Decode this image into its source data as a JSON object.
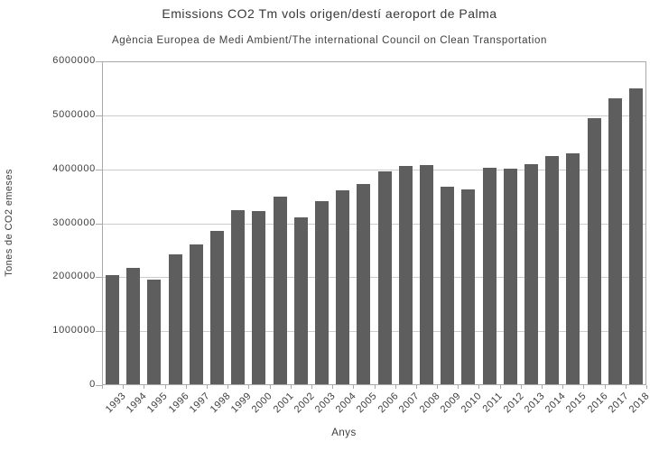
{
  "chart_data": {
    "type": "bar",
    "title": "Emissions CO2 Tm vols origen/destí aeroport de Palma",
    "subtitle": "Agència Europea de Medi Ambient/The international Council on Clean Transportation",
    "xlabel": "Anys",
    "ylabel": "Tones de CO2 emeses",
    "categories": [
      "1993",
      "1994",
      "1995",
      "1996",
      "1997",
      "1998",
      "1999",
      "2000",
      "2001",
      "2002",
      "2003",
      "2004",
      "2005",
      "2006",
      "2007",
      "2008",
      "2009",
      "2010",
      "2011",
      "2012",
      "2013",
      "2014",
      "2015",
      "2016",
      "2017",
      "2018"
    ],
    "values": [
      2040000,
      2180000,
      1960000,
      2430000,
      2600000,
      2850000,
      3240000,
      3230000,
      3490000,
      3110000,
      3410000,
      3610000,
      3730000,
      3960000,
      4060000,
      4080000,
      3680000,
      3630000,
      4030000,
      4010000,
      4100000,
      4250000,
      4300000,
      4950000,
      5320000,
      5500000
    ],
    "ylim": [
      0,
      6000000
    ],
    "ytick_interval": 1000000,
    "ytick_labels": [
      "0",
      "1000000",
      "2000000",
      "3000000",
      "4000000",
      "5000000",
      "6000000"
    ],
    "grid": true,
    "legend": "none"
  },
  "colors": {
    "bar": "#5e5e5e",
    "gridline": "#cccccc",
    "frame": "#a9a9a9",
    "text": "#3d3d3d",
    "background": "#ffffff"
  }
}
